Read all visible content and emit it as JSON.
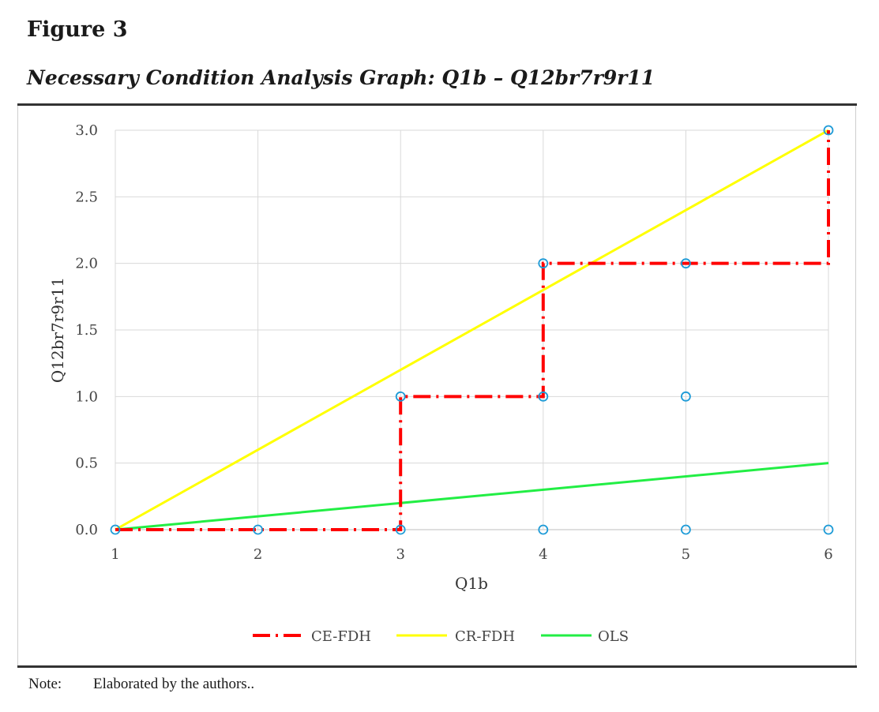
{
  "figure": {
    "label": "Figure 3",
    "title": "Necessary Condition Analysis Graph: Q1b – Q12br7r9r11"
  },
  "note": {
    "label": "Note:",
    "text": "Elaborated by the authors.."
  },
  "chart_data": {
    "type": "scatter",
    "xlabel": "Q1b",
    "ylabel": "Q12br7r9r11",
    "xlim": [
      1,
      6
    ],
    "ylim": [
      0,
      3
    ],
    "x_ticks": [
      "1",
      "2",
      "3",
      "4",
      "5",
      "6"
    ],
    "y_ticks": [
      "0.0",
      "0.5",
      "1.0",
      "1.5",
      "2.0",
      "2.5",
      "3.0"
    ],
    "grid": true,
    "legend_position": "bottom",
    "points": [
      {
        "x": 1,
        "y": 0
      },
      {
        "x": 2,
        "y": 0
      },
      {
        "x": 3,
        "y": 0
      },
      {
        "x": 3,
        "y": 1
      },
      {
        "x": 4,
        "y": 0
      },
      {
        "x": 4,
        "y": 1
      },
      {
        "x": 4,
        "y": 2
      },
      {
        "x": 5,
        "y": 0
      },
      {
        "x": 5,
        "y": 1
      },
      {
        "x": 5,
        "y": 2
      },
      {
        "x": 6,
        "y": 0
      },
      {
        "x": 6,
        "y": 3
      }
    ],
    "series": [
      {
        "name": "CE-FDH",
        "style": "dash-dot",
        "color": "#ff0000",
        "x": [
          1,
          3,
          3,
          4,
          4,
          6,
          6
        ],
        "y": [
          0,
          0,
          1,
          1,
          2,
          2,
          3
        ]
      },
      {
        "name": "CR-FDH",
        "style": "solid",
        "color": "#ffff00",
        "x": [
          1,
          6
        ],
        "y": [
          0,
          3
        ]
      },
      {
        "name": "OLS",
        "style": "solid",
        "color": "#22ee44",
        "x": [
          1,
          6
        ],
        "y": [
          0,
          0.5
        ]
      }
    ],
    "point_color": "#1e9bd7"
  }
}
